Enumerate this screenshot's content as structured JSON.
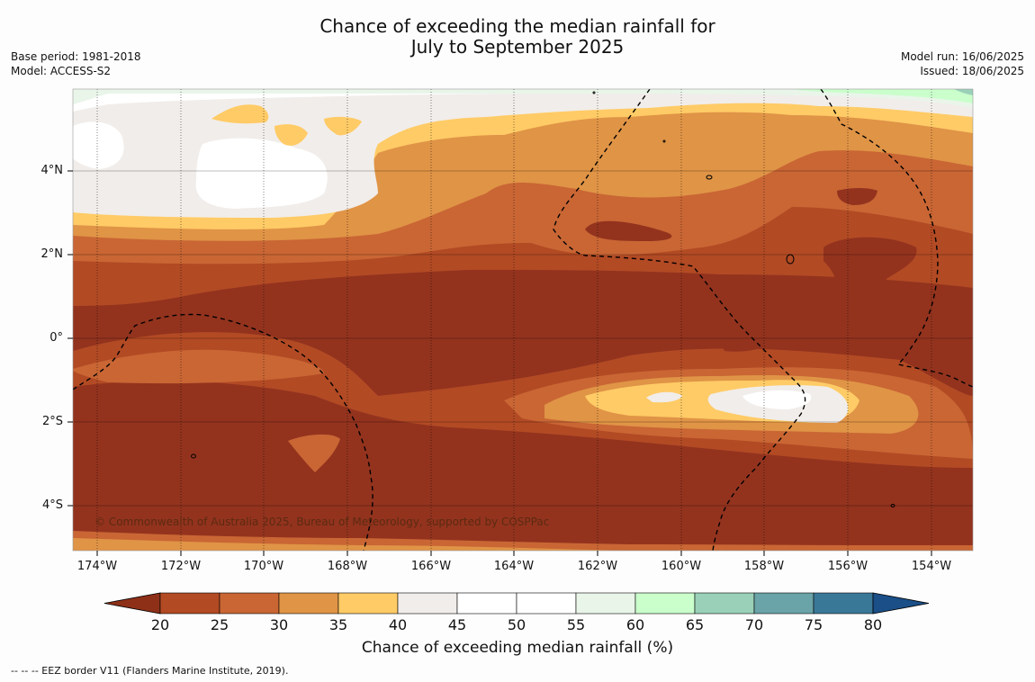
{
  "title_line1": "Chance of exceeding the median rainfall for",
  "title_line2": "July to September 2025",
  "base_period": "Base period: 1981-2018",
  "model": "Model: ACCESS-S2",
  "model_run": "Model run: 16/06/2025",
  "issued": "Issued: 18/06/2025",
  "copyright": "© Commonwealth of Australia 2025, Bureau of Meteorology, supported by COSPPac",
  "legend_text": "--  --  -- EEZ border V11 (Flanders Marine Institute, 2019).",
  "lat_labels": [
    "4°N",
    "2°N",
    "0°",
    "2°S",
    "4°S"
  ],
  "lon_labels": [
    "174°W",
    "172°W",
    "170°W",
    "168°W",
    "166°W",
    "164°W",
    "162°W",
    "160°W",
    "158°W",
    "156°W",
    "154°W"
  ],
  "colorbar": {
    "title": "Chance of exceeding median rainfall (%)",
    "ticks": [
      "20",
      "25",
      "30",
      "35",
      "40",
      "45",
      "50",
      "55",
      "60",
      "65",
      "70",
      "75",
      "80"
    ],
    "colors": [
      "#8e3018",
      "#b24a24",
      "#c96634",
      "#e09446",
      "#ffcb66",
      "#f1edea",
      "#ffffff",
      "#ffffff",
      "#eaf5ea",
      "#caffcc",
      "#9ad0b8",
      "#6aa3a8",
      "#3a7898",
      "#1a4f88"
    ]
  },
  "colors": {
    "land": "#93331e"
  }
}
